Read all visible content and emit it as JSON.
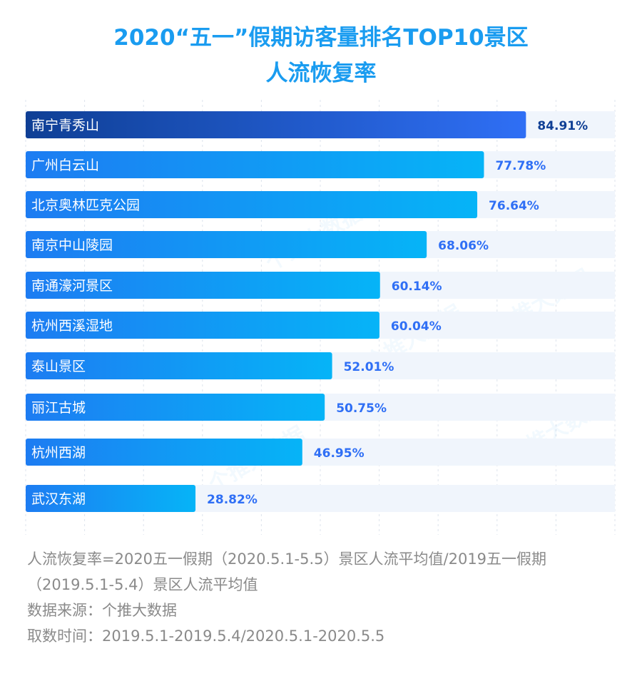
{
  "title": {
    "line1": "2020“五一”假期访客量排名TOP10景区",
    "line2": "人流恢复率"
  },
  "colors": {
    "title": "#1a9cf0",
    "top_bar_start": "#0f3f95",
    "top_bar_end": "#2f6ff5",
    "bar_start": "#1d7cf2",
    "bar_end": "#06b4f7",
    "track": "#f0f5fc",
    "top_value": "#0f3f95",
    "value": "#2f6ff5",
    "notes": "#8a8a8a"
  },
  "chart_data": {
    "type": "bar",
    "orientation": "horizontal",
    "title": "2020“五一”假期访客量排名TOP10景区人流恢复率",
    "categories": [
      "南宁青秀山",
      "广州白云山",
      "北京奥林匹克公园",
      "南京中山陵园",
      "南通濠河景区",
      "杭州西溪湿地",
      "泰山景区",
      "丽江古城",
      "杭州西湖",
      "武汉东湖"
    ],
    "values": [
      84.91,
      77.78,
      76.64,
      68.06,
      60.14,
      60.04,
      52.01,
      50.75,
      46.95,
      28.82
    ],
    "value_labels": [
      "84.91%",
      "77.78%",
      "76.64%",
      "68.06%",
      "60.14%",
      "60.04%",
      "52.01%",
      "50.75%",
      "46.95%",
      "28.82%"
    ],
    "unit": "%",
    "xlim": [
      0,
      100
    ],
    "grid": true
  },
  "notes": {
    "line1": "人流恢复率=2020五一假期（2020.5.1-5.5）景区人流平均值/2019五一假期",
    "line2": "（2019.5.1-5.4）景区人流平均值",
    "line3": "数据来源：个推大数据",
    "line4": "取数时间：2019.5.1-2019.5.4/2020.5.1-2020.5.5"
  },
  "watermark": "个推大数据"
}
